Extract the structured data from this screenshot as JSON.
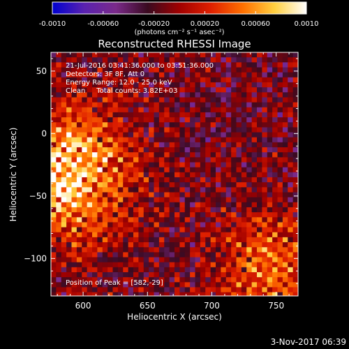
{
  "colorbar": {
    "tick_labels": [
      "-0.0010",
      "-0.00060",
      "-0.00020",
      "0.00020",
      "0.00060",
      "0.0010"
    ],
    "tick_values": [
      -0.001,
      -0.0006,
      -0.0002,
      0.0002,
      0.0006,
      0.001
    ],
    "range": [
      -0.001,
      0.001
    ],
    "unit_label": "(photons cm⁻² s⁻¹ asec⁻²)",
    "colormap_stops": [
      "#0000d0",
      "#5a22b0",
      "#7a2a8a",
      "#3a0a20",
      "#a00000",
      "#e02000",
      "#ff7000",
      "#ffd040",
      "#ffffff"
    ]
  },
  "chart_data": {
    "type": "heatmap",
    "title": "Reconstructed RHESSI Image",
    "xlabel": "Heliocentric X (arcsec)",
    "ylabel": "Heliocentric Y (arcsec)",
    "xlim": [
      575,
      767
    ],
    "ylim": [
      -130,
      65
    ],
    "x_ticks": [
      600,
      650,
      700,
      750
    ],
    "y_ticks": [
      50,
      0,
      -50,
      -100
    ],
    "x_tick_labels": [
      "600",
      "650",
      "700",
      "750"
    ],
    "y_tick_labels": [
      "50",
      "0",
      "−50",
      "−100"
    ],
    "annotations": [
      "21-Jul-2016 03:41:36.000 to 03:51:36.000",
      "Detectors: 3F 8F, Att 0",
      "Energy Range: 12.0 - 25.0 keV",
      "Clean     Total counts: 3.82E+03"
    ],
    "peak_label": "Position of Peak = [582,-29]",
    "peak_position": [
      582,
      -29
    ],
    "grid": false
  },
  "footer": {
    "timestamp": "3-Nov-2017 06:39"
  }
}
